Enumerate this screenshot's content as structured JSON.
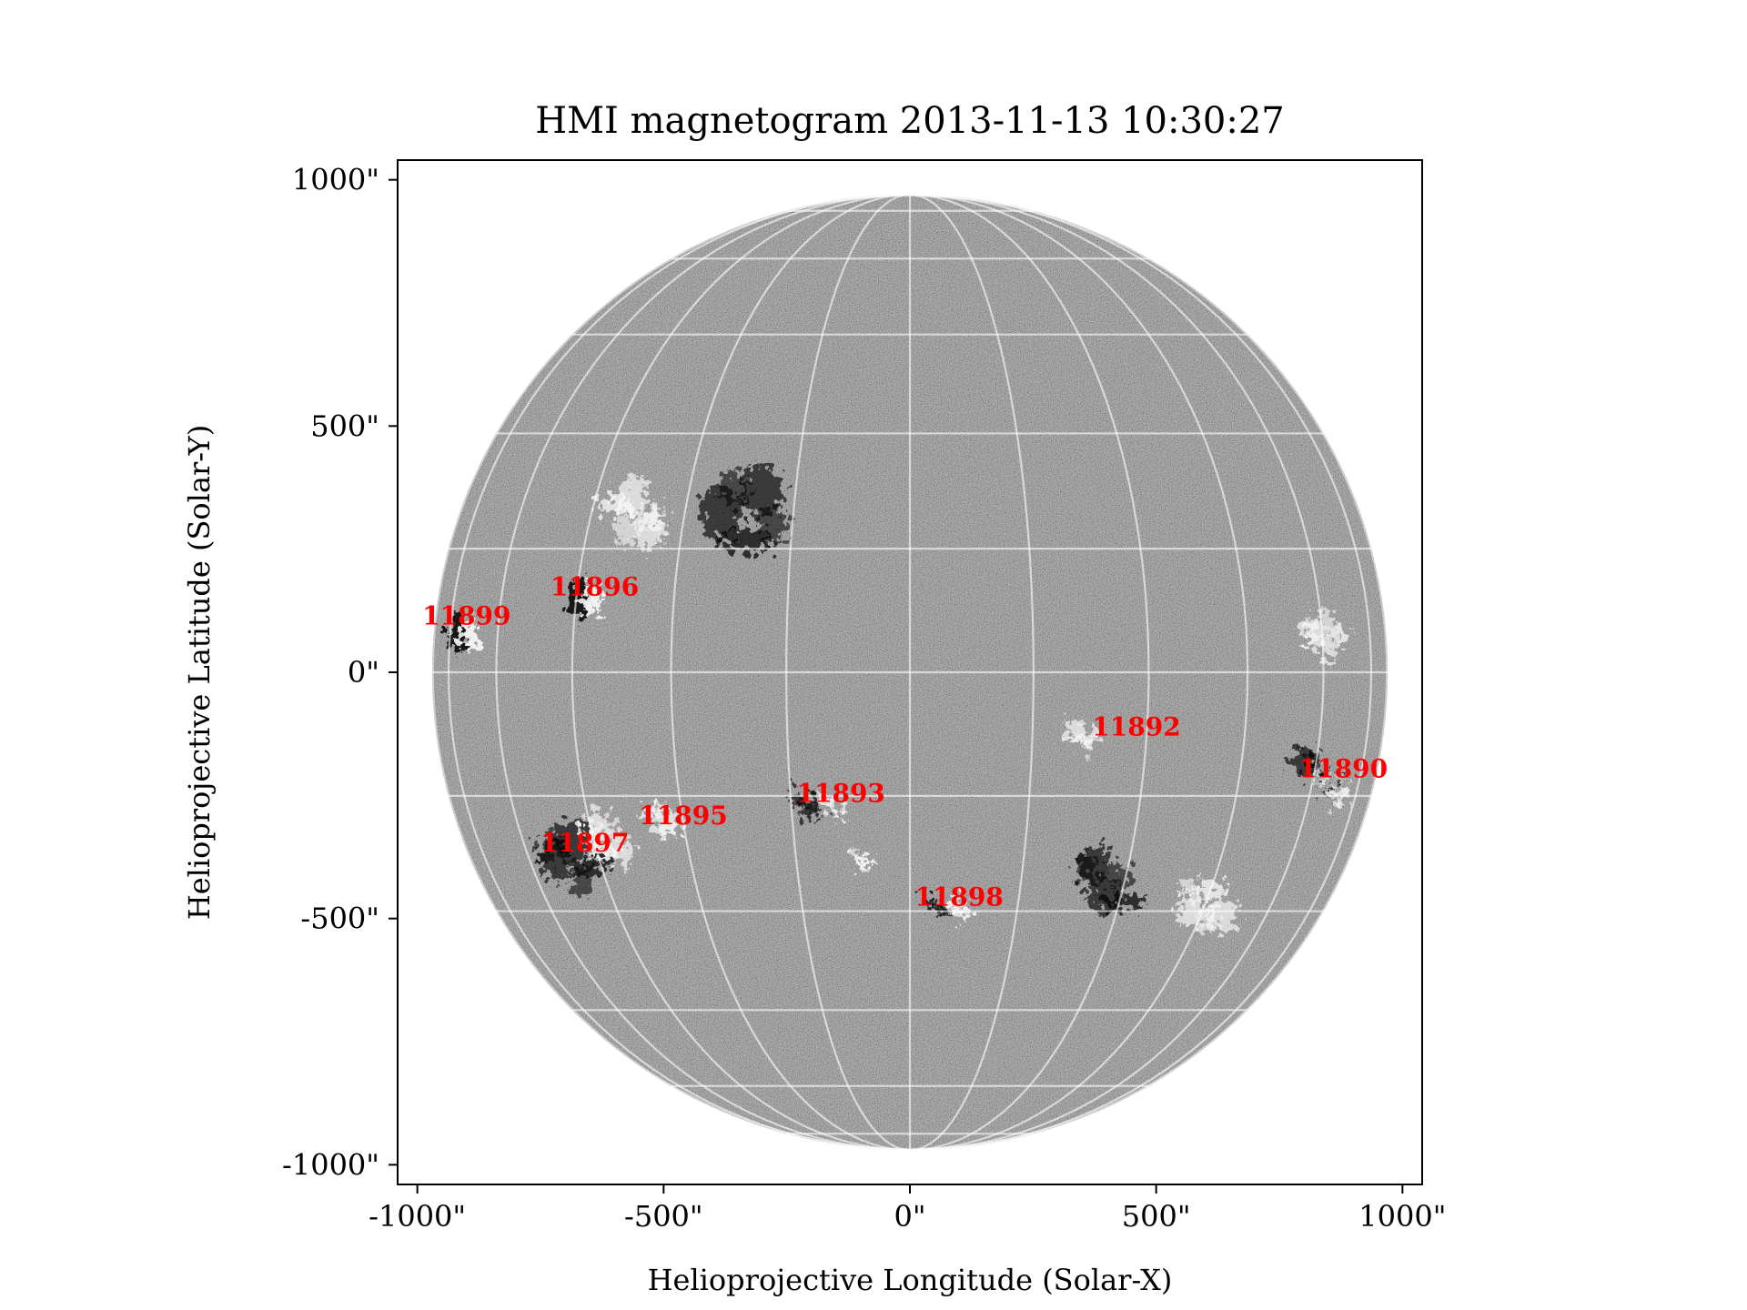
{
  "chart_data": {
    "type": "heatmap",
    "title": "HMI magnetogram 2013-11-13 10:30:27",
    "xlabel": "Helioprojective Longitude (Solar-X)",
    "ylabel": "Helioprojective Latitude (Solar-Y)",
    "xlim": [
      -1040,
      1040
    ],
    "ylim": [
      -1040,
      1040
    ],
    "x_ticks": [
      {
        "value": -1000,
        "label": "-1000\""
      },
      {
        "value": -500,
        "label": "-500\""
      },
      {
        "value": 0,
        "label": "0\""
      },
      {
        "value": 500,
        "label": "500\""
      },
      {
        "value": 1000,
        "label": "1000\""
      }
    ],
    "y_ticks": [
      {
        "value": 1000,
        "label": "1000\""
      },
      {
        "value": 500,
        "label": "500\""
      },
      {
        "value": 0,
        "label": "0\""
      },
      {
        "value": -500,
        "label": "-500\""
      },
      {
        "value": -1000,
        "label": "-1000\""
      }
    ],
    "solar_radius_arcsec": 970,
    "grid": true,
    "grid_spacing_deg": 15,
    "colormap": "gray",
    "annotation_color": "#ff0000",
    "active_regions": [
      {
        "label": "11890",
        "x": 880,
        "y": -195
      },
      {
        "label": "11892",
        "x": 460,
        "y": -110
      },
      {
        "label": "11893",
        "x": -140,
        "y": -245
      },
      {
        "label": "11895",
        "x": -460,
        "y": -290
      },
      {
        "label": "11896",
        "x": -640,
        "y": 175
      },
      {
        "label": "11897",
        "x": -660,
        "y": -345
      },
      {
        "label": "11898",
        "x": 100,
        "y": -455
      },
      {
        "label": "11899",
        "x": -900,
        "y": 115
      }
    ],
    "flux_patches": [
      {
        "x": -910,
        "y": 80,
        "r": 45,
        "polarity": "mixed"
      },
      {
        "x": -660,
        "y": 150,
        "r": 45,
        "polarity": "mixed"
      },
      {
        "x": -690,
        "y": -380,
        "r": 95,
        "polarity": "negative"
      },
      {
        "x": -620,
        "y": -340,
        "r": 70,
        "polarity": "positive"
      },
      {
        "x": -500,
        "y": -300,
        "r": 50,
        "polarity": "positive"
      },
      {
        "x": -210,
        "y": -270,
        "r": 40,
        "polarity": "negative"
      },
      {
        "x": -160,
        "y": -275,
        "r": 35,
        "polarity": "positive"
      },
      {
        "x": -100,
        "y": -380,
        "r": 30,
        "polarity": "positive"
      },
      {
        "x": 50,
        "y": -470,
        "r": 30,
        "polarity": "negative"
      },
      {
        "x": 100,
        "y": -480,
        "r": 35,
        "polarity": "positive"
      },
      {
        "x": 830,
        "y": -200,
        "r": 70,
        "polarity": "negative"
      },
      {
        "x": 860,
        "y": -230,
        "r": 50,
        "polarity": "positive"
      },
      {
        "x": 350,
        "y": -130,
        "r": 40,
        "polarity": "positive"
      },
      {
        "x": 400,
        "y": -430,
        "r": 90,
        "polarity": "negative"
      },
      {
        "x": 600,
        "y": -470,
        "r": 80,
        "polarity": "positive"
      },
      {
        "x": -560,
        "y": 320,
        "r": 90,
        "polarity": "positive"
      },
      {
        "x": -330,
        "y": 320,
        "r": 120,
        "polarity": "negative"
      },
      {
        "x": 840,
        "y": 80,
        "r": 60,
        "polarity": "positive"
      }
    ]
  }
}
